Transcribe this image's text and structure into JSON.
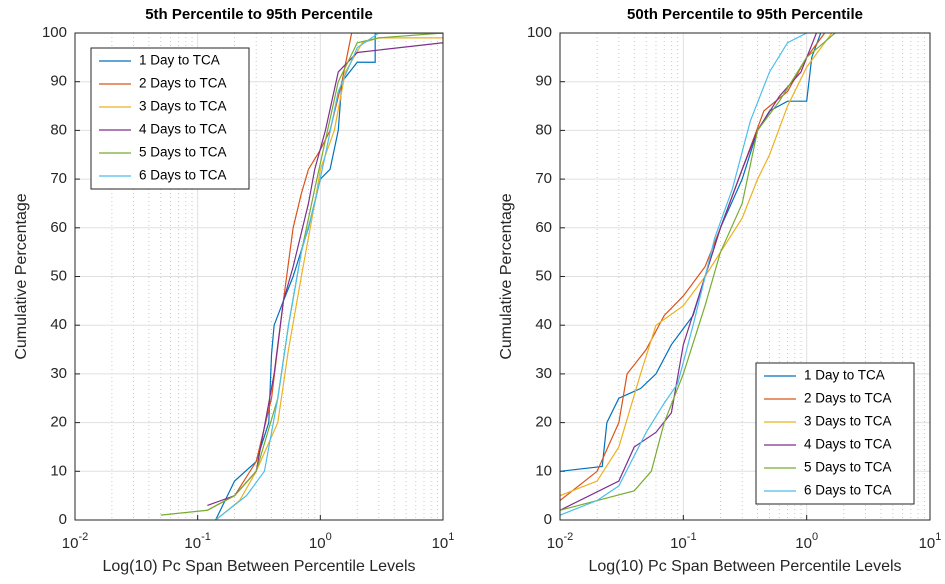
{
  "chart_data": [
    {
      "type": "line",
      "title": "5th Percentile to 95th Percentile",
      "x_label": "Log(10) Pc Span Between Percentile Levels",
      "y_label": "Cumulative Percentage",
      "xscale": "log",
      "xlim": [
        0.01,
        10
      ],
      "ylim": [
        0,
        100
      ],
      "xticks": [
        {
          "value": 0.01,
          "label": "10^-2"
        },
        {
          "value": 0.1,
          "label": "10^-1"
        },
        {
          "value": 1,
          "label": "10^0"
        },
        {
          "value": 10,
          "label": "10^1"
        }
      ],
      "yticks": [
        0,
        10,
        20,
        30,
        40,
        50,
        60,
        70,
        80,
        90,
        100
      ],
      "grid": true,
      "legend": "northwest",
      "series": [
        {
          "name": "1 Day to TCA",
          "color": "#0072BD",
          "x": [
            0.14,
            0.2,
            0.3,
            0.38,
            0.4,
            0.42,
            0.5,
            0.6,
            0.8,
            1.0,
            1.2,
            1.4,
            1.5,
            2.0,
            2.8,
            2.8,
            10
          ],
          "values": [
            0,
            8,
            12,
            20,
            34,
            40,
            45,
            50,
            60,
            70,
            72,
            80,
            90,
            94,
            94,
            100,
            100
          ]
        },
        {
          "name": "2 Days to TCA",
          "color": "#D95319",
          "x": [
            0.12,
            0.2,
            0.3,
            0.4,
            0.5,
            0.6,
            0.7,
            0.8,
            1.0,
            1.2,
            1.5,
            1.8,
            10
          ],
          "values": [
            2,
            5,
            12,
            25,
            45,
            60,
            67,
            72,
            76,
            80,
            90,
            100,
            100
          ]
        },
        {
          "name": "3 Days to TCA",
          "color": "#EDB120",
          "x": [
            0.14,
            0.22,
            0.3,
            0.45,
            0.55,
            0.7,
            0.9,
            1.0,
            1.3,
            1.6,
            2.2,
            3,
            10
          ],
          "values": [
            0,
            4,
            10,
            20,
            35,
            50,
            65,
            72,
            80,
            92,
            98,
            99,
            99
          ]
        },
        {
          "name": "4 Days to TCA",
          "color": "#7E2F8E",
          "x": [
            0.12,
            0.2,
            0.3,
            0.42,
            0.5,
            0.6,
            0.8,
            0.9,
            1.1,
            1.4,
            2,
            10
          ],
          "values": [
            3,
            5,
            10,
            30,
            45,
            52,
            65,
            72,
            80,
            92,
            96,
            98
          ]
        },
        {
          "name": "5 Days to TCA",
          "color": "#77AC30",
          "x": [
            0.05,
            0.12,
            0.2,
            0.3,
            0.45,
            0.55,
            0.7,
            0.9,
            1.1,
            1.4,
            2,
            3,
            10
          ],
          "values": [
            1,
            2,
            5,
            10,
            25,
            40,
            55,
            68,
            78,
            90,
            98,
            99,
            100
          ]
        },
        {
          "name": "6 Days to TCA",
          "color": "#4DBEEE",
          "x": [
            0.14,
            0.25,
            0.35,
            0.45,
            0.55,
            0.7,
            0.9,
            1.1,
            1.4,
            2,
            3,
            10
          ],
          "values": [
            0,
            5,
            10,
            25,
            40,
            55,
            65,
            75,
            88,
            97,
            100,
            100
          ]
        }
      ]
    },
    {
      "type": "line",
      "title": "50th Percentile to 95th Percentile",
      "x_label": "Log(10) Pc Span Between Percentile Levels",
      "y_label": "Cumulative Percentage",
      "xscale": "log",
      "xlim": [
        0.01,
        10
      ],
      "ylim": [
        0,
        100
      ],
      "xticks": [
        {
          "value": 0.01,
          "label": "10^-2"
        },
        {
          "value": 0.1,
          "label": "10^-1"
        },
        {
          "value": 1,
          "label": "10^0"
        },
        {
          "value": 10,
          "label": "10^1"
        }
      ],
      "yticks": [
        0,
        10,
        20,
        30,
        40,
        50,
        60,
        70,
        80,
        90,
        100
      ],
      "grid": true,
      "legend": "southeast",
      "series": [
        {
          "name": "1 Day to TCA",
          "color": "#0072BD",
          "x": [
            0.01,
            0.022,
            0.024,
            0.03,
            0.045,
            0.06,
            0.08,
            0.12,
            0.15,
            0.2,
            0.3,
            0.4,
            0.5,
            0.7,
            1.0,
            1.1,
            1.3
          ],
          "values": [
            10,
            11,
            20,
            25,
            27,
            30,
            36,
            42,
            50,
            60,
            70,
            80,
            84,
            86,
            86,
            95,
            100
          ]
        },
        {
          "name": "2 Days to TCA",
          "color": "#D95319",
          "x": [
            0.01,
            0.02,
            0.03,
            0.035,
            0.05,
            0.07,
            0.1,
            0.15,
            0.2,
            0.3,
            0.45,
            0.7,
            1.0,
            1.4
          ],
          "values": [
            4,
            10,
            20,
            30,
            35,
            42,
            46,
            52,
            60,
            72,
            84,
            88,
            95,
            100
          ]
        },
        {
          "name": "3 Days to TCA",
          "color": "#EDB120",
          "x": [
            0.01,
            0.02,
            0.03,
            0.045,
            0.06,
            0.1,
            0.15,
            0.2,
            0.3,
            0.4,
            0.5,
            0.7,
            1.0,
            1.6
          ],
          "values": [
            5,
            8,
            15,
            30,
            40,
            44,
            50,
            55,
            62,
            70,
            75,
            85,
            93,
            100
          ]
        },
        {
          "name": "4 Days to TCA",
          "color": "#7E2F8E",
          "x": [
            0.01,
            0.03,
            0.04,
            0.06,
            0.08,
            0.1,
            0.15,
            0.2,
            0.3,
            0.4,
            0.6,
            0.9,
            1.2
          ],
          "values": [
            2,
            8,
            15,
            18,
            22,
            36,
            50,
            60,
            72,
            80,
            87,
            92,
            100
          ]
        },
        {
          "name": "5 Days to TCA",
          "color": "#77AC30",
          "x": [
            0.01,
            0.02,
            0.04,
            0.055,
            0.07,
            0.1,
            0.15,
            0.2,
            0.3,
            0.4,
            0.6,
            1.0,
            1.7
          ],
          "values": [
            2,
            4,
            6,
            10,
            20,
            30,
            44,
            55,
            65,
            80,
            86,
            95,
            100
          ]
        },
        {
          "name": "6 Days to TCA",
          "color": "#4DBEEE",
          "x": [
            0.01,
            0.02,
            0.03,
            0.05,
            0.07,
            0.09,
            0.12,
            0.18,
            0.25,
            0.35,
            0.5,
            0.7,
            1.0
          ],
          "values": [
            1,
            4,
            7,
            18,
            24,
            28,
            40,
            58,
            68,
            82,
            92,
            98,
            100
          ]
        }
      ]
    }
  ]
}
